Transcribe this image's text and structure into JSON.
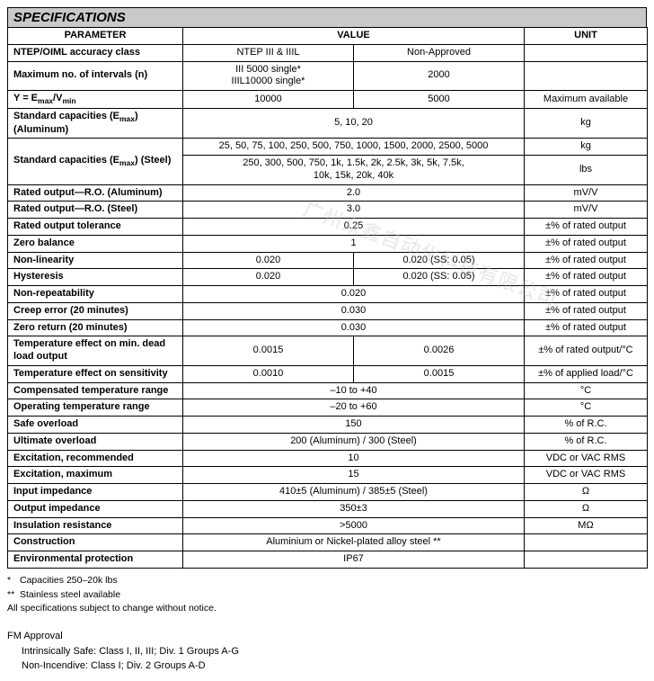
{
  "title": "SPECIFICATIONS",
  "headers": {
    "parameter": "PARAMETER",
    "value": "VALUE",
    "unit": "UNIT"
  },
  "rows": {
    "accuracy": {
      "param": "NTEP/OIML accuracy class",
      "v1": "NTEP III & IIIL",
      "v2": "Non-Approved",
      "unit": ""
    },
    "intervals": {
      "param": "Maximum no. of intervals (n)",
      "v1": "III 5000 single*\nIIIL10000 single*",
      "v2": "2000",
      "unit": ""
    },
    "y": {
      "param_pre": "Y = E",
      "param_sub": "max",
      "param_mid": "/V",
      "param_sub2": "min",
      "v1": "10000",
      "v2": "5000",
      "unit": "Maximum available"
    },
    "cap_al": {
      "param_pre": "Standard capacities (E",
      "param_sub": "max",
      "param_post": ") (Aluminum)",
      "value": "5, 10, 20",
      "unit": "kg"
    },
    "cap_st_kg": {
      "param_pre": "Standard capacities (E",
      "param_sub": "max",
      "param_post": ") (Steel)",
      "value": "25, 50, 75, 100, 250, 500, 750, 1000, 1500, 2000, 2500, 5000",
      "unit": "kg"
    },
    "cap_st_lb": {
      "value": "250, 300, 500, 750, 1k, 1.5k, 2k, 2.5k, 3k, 5k, 7.5k,\n10k, 15k, 20k, 40k",
      "unit": "lbs"
    },
    "ro_al": {
      "param": "Rated output—R.O. (Aluminum)",
      "value": "2.0",
      "unit": "mV/V"
    },
    "ro_st": {
      "param": "Rated output—R.O. (Steel)",
      "value": "3.0",
      "unit": "mV/V"
    },
    "ro_tol": {
      "param": "Rated output tolerance",
      "value": "0.25",
      "unit": "±% of rated output"
    },
    "zero_bal": {
      "param": "Zero balance",
      "value": "1",
      "unit": "±% of rated output"
    },
    "nonlin": {
      "param": "Non-linearity",
      "v1": "0.020",
      "v2": "0.020 (SS: 0.05)",
      "unit": "±% of rated output"
    },
    "hyst": {
      "param": "Hysteresis",
      "v1": "0.020",
      "v2": "0.020 (SS: 0.05)",
      "unit": "±% of rated output"
    },
    "nonrep": {
      "param": "Non-repeatability",
      "value": "0.020",
      "unit": "±% of rated output"
    },
    "creep": {
      "param": "Creep error (20 minutes)",
      "value": "0.030",
      "unit": "±% of rated output"
    },
    "zero_ret": {
      "param": "Zero return (20 minutes)",
      "value": "0.030",
      "unit": "±% of rated output"
    },
    "temp_dead": {
      "param": "Temperature effect on min. dead load output",
      "v1": "0.0015",
      "v2": "0.0026",
      "unit": "±% of rated output/°C"
    },
    "temp_sens": {
      "param": "Temperature effect on sensitivity",
      "v1": "0.0010",
      "v2": "0.0015",
      "unit": "±% of applied load/°C"
    },
    "comp_temp": {
      "param": "Compensated temperature range",
      "value": "–10 to +40",
      "unit": "°C"
    },
    "op_temp": {
      "param": "Operating temperature range",
      "value": "–20 to +60",
      "unit": "°C"
    },
    "safe_ol": {
      "param": "Safe overload",
      "value": "150",
      "unit": "% of R.C."
    },
    "ult_ol": {
      "param": "Ultimate overload",
      "value": "200 (Aluminum) / 300 (Steel)",
      "unit": "% of R.C."
    },
    "exc_rec": {
      "param": "Excitation, recommended",
      "value": "10",
      "unit": "VDC or VAC RMS"
    },
    "exc_max": {
      "param": "Excitation, maximum",
      "value": "15",
      "unit": "VDC or VAC RMS"
    },
    "in_imp": {
      "param": "Input impedance",
      "value": "410±5 (Aluminum) / 385±5 (Steel)",
      "unit": "Ω"
    },
    "out_imp": {
      "param": "Output impedance",
      "value": "350±3",
      "unit": "Ω"
    },
    "ins_res": {
      "param": "Insulation resistance",
      "value": ">5000",
      "unit": "MΩ"
    },
    "constr": {
      "param": "Construction",
      "value": "Aluminium or Nickel-plated alloy steel **",
      "unit": ""
    },
    "env": {
      "param": "Environmental protection",
      "value": "IP67",
      "unit": ""
    }
  },
  "footnotes": {
    "f1": {
      "mark": "*",
      "text": "Capacities 250–20k lbs"
    },
    "f2": {
      "mark": "**",
      "text": "Stainless steel available"
    },
    "f3": "All specifications subject to change without notice."
  },
  "approval": {
    "title": "FM Approval",
    "line1": "Intrinsically Safe: Class I, II, III; Div. 1 Groups A-G",
    "line2": "Non-Incendive: Class I; Div. 2 Groups A-D"
  },
  "watermark": "广州众鑫自动化科技有限公司",
  "colors": {
    "header_bg": "#c9c9c9",
    "border": "#000000",
    "text": "#000000",
    "watermark": "#bdbdbd"
  }
}
